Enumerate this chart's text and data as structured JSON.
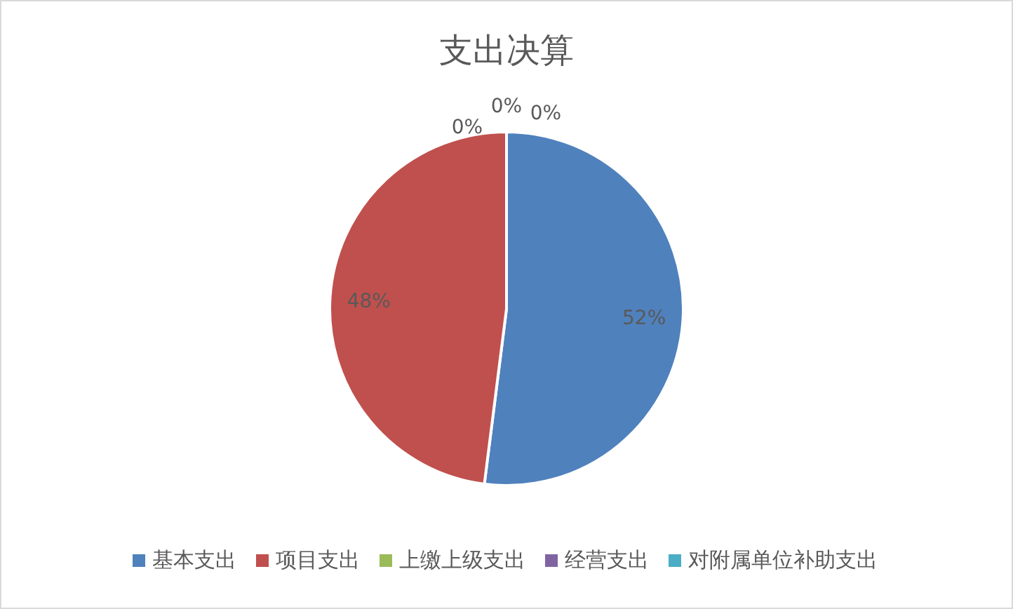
{
  "chart_data": {
    "type": "pie",
    "title": "支出决算",
    "categories": [
      "基本支出",
      "项目支出",
      "上缴上级支出",
      "经营支出",
      "对附属单位补助支出"
    ],
    "values": [
      52,
      48,
      0,
      0,
      0
    ],
    "colors": [
      "#4f81bd",
      "#c0504d",
      "#9bbb59",
      "#8064a2",
      "#4bacc6"
    ],
    "value_labels": [
      "52%",
      "48%",
      "0%",
      "0%",
      "0%"
    ],
    "legend": "bottom"
  }
}
